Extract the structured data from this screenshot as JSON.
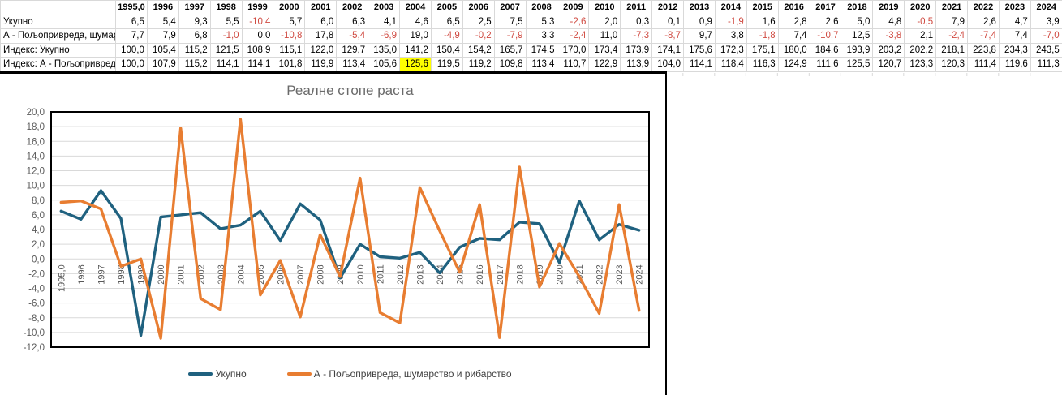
{
  "colors": {
    "negative_value": "#d04b42",
    "highlight_cell": "#ffff00",
    "grid_line": "#d9d9d9",
    "axis_text": "#595959",
    "chart_title_text": "#6a6a6a",
    "plot_border": "#000000"
  },
  "table": {
    "corner_label": "",
    "years": [
      "1995,0",
      "1996",
      "1997",
      "1998",
      "1999",
      "2000",
      "2001",
      "2002",
      "2003",
      "2004",
      "2005",
      "2006",
      "2007",
      "2008",
      "2009",
      "2010",
      "2011",
      "2012",
      "2013",
      "2014",
      "2015",
      "2016",
      "2017",
      "2018",
      "2019",
      "2020",
      "2021",
      "2022",
      "2023",
      "2024"
    ],
    "rows": [
      {
        "label": "Укупно",
        "cells": [
          "6,5",
          "5,4",
          "9,3",
          "5,5",
          "-10,4",
          "5,7",
          "6,0",
          "6,3",
          "4,1",
          "4,6",
          "6,5",
          "2,5",
          "7,5",
          "5,3",
          "-2,6",
          "2,0",
          "0,3",
          "0,1",
          "0,9",
          "-1,9",
          "1,6",
          "2,8",
          "2,6",
          "5,0",
          "4,8",
          "-0,5",
          "7,9",
          "2,6",
          "4,7",
          "3,9"
        ]
      },
      {
        "label": "А - Пољопривреда, шумар",
        "cells": [
          "7,7",
          "7,9",
          "6,8",
          "-1,0",
          "0,0",
          "-10,8",
          "17,8",
          "-5,4",
          "-6,9",
          "19,0",
          "-4,9",
          "-0,2",
          "-7,9",
          "3,3",
          "-2,4",
          "11,0",
          "-7,3",
          "-8,7",
          "9,7",
          "3,8",
          "-1,8",
          "7,4",
          "-10,7",
          "12,5",
          "-3,8",
          "2,1",
          "-2,4",
          "-7,4",
          "7,4",
          "-7,0"
        ]
      },
      {
        "label": "Индекс: Укупно",
        "cells": [
          "100,0",
          "105,4",
          "115,2",
          "121,5",
          "108,9",
          "115,1",
          "122,0",
          "129,7",
          "135,0",
          "141,2",
          "150,4",
          "154,2",
          "165,7",
          "174,5",
          "170,0",
          "173,4",
          "173,9",
          "174,1",
          "175,6",
          "172,3",
          "175,1",
          "180,0",
          "184,6",
          "193,9",
          "203,2",
          "202,2",
          "218,1",
          "223,8",
          "234,3",
          "243,5"
        ]
      },
      {
        "label": "Индекс: А - Пољопривред",
        "cells": [
          "100,0",
          "107,9",
          "115,2",
          "114,1",
          "114,1",
          "101,8",
          "119,9",
          "113,4",
          "105,6",
          "125,6",
          "119,5",
          "119,2",
          "109,8",
          "113,4",
          "110,7",
          "122,9",
          "113,9",
          "104,0",
          "114,1",
          "118,4",
          "116,3",
          "124,9",
          "111,6",
          "125,5",
          "120,7",
          "123,3",
          "120,3",
          "111,4",
          "119,6",
          "111,3"
        ]
      }
    ],
    "highlight": {
      "row": 3,
      "col": 9
    }
  },
  "chart_data": {
    "type": "line",
    "title": "Реалне стопе раста",
    "categories": [
      "1995,0",
      "1996",
      "1997",
      "1998",
      "1999",
      "2000",
      "2001",
      "2002",
      "2003",
      "2004",
      "2005",
      "2006",
      "2007",
      "2008",
      "2009",
      "2010",
      "2011",
      "2012",
      "2013",
      "2014",
      "2015",
      "2016",
      "2017",
      "2018",
      "2019",
      "2020",
      "2021",
      "2022",
      "2023",
      "2024"
    ],
    "series": [
      {
        "name": "Укупно",
        "color": "#1f617f",
        "values": [
          6.5,
          5.4,
          9.3,
          5.5,
          -10.4,
          5.7,
          6.0,
          6.3,
          4.1,
          4.6,
          6.5,
          2.5,
          7.5,
          5.3,
          -2.6,
          2.0,
          0.3,
          0.1,
          0.9,
          -1.9,
          1.6,
          2.8,
          2.6,
          5.0,
          4.8,
          -0.5,
          7.9,
          2.6,
          4.7,
          3.9
        ]
      },
      {
        "name": "А - Пољопривреда, шумарство и рибарство",
        "color": "#e87d31",
        "values": [
          7.7,
          7.9,
          6.8,
          -1.0,
          0.0,
          -10.8,
          17.8,
          -5.4,
          -6.9,
          19.0,
          -4.9,
          -0.2,
          -7.9,
          3.3,
          -2.4,
          11.0,
          -7.3,
          -8.7,
          9.7,
          3.8,
          -1.8,
          7.4,
          -10.7,
          12.5,
          -3.8,
          2.1,
          -2.4,
          -7.4,
          7.4,
          -7.0
        ]
      }
    ],
    "ylim": [
      -12,
      20
    ],
    "ytick_step": 2,
    "xlabel": "",
    "ylabel": "",
    "grid": true,
    "x_label_rotation": -90,
    "legend_position": "bottom"
  }
}
